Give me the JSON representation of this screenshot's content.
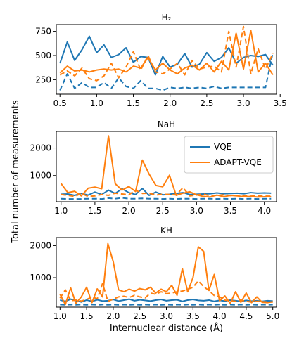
{
  "figure": {
    "xlabel": "Internuclear distance (Å)",
    "ylabel": "Total number of measurements"
  },
  "legend": {
    "location": "upper right of the NaH panel",
    "entries": [
      {
        "label": "VQE",
        "color": "#1f77b4"
      },
      {
        "label": "ADAPT-VQE",
        "color": "#ff7f0e"
      }
    ]
  },
  "chart_data": [
    {
      "type": "line",
      "title": "H₂",
      "xlim": [
        0.45,
        3.45
      ],
      "ylim": [
        100,
        820
      ],
      "xticks": [
        0.5,
        1.0,
        1.5,
        2.0,
        2.5,
        3.0,
        3.5
      ],
      "yticks": [
        250,
        500,
        750
      ],
      "x": [
        0.5,
        0.6,
        0.7,
        0.8,
        0.9,
        1.0,
        1.1,
        1.2,
        1.3,
        1.4,
        1.5,
        1.6,
        1.7,
        1.8,
        1.9,
        2.0,
        2.1,
        2.2,
        2.3,
        2.4,
        2.5,
        2.6,
        2.7,
        2.8,
        2.9,
        3.0,
        3.1,
        3.2,
        3.3,
        3.4
      ],
      "series": [
        {
          "name": "VQE",
          "style": "solid",
          "color": "#1f77b4",
          "values": [
            420,
            640,
            450,
            560,
            700,
            530,
            610,
            480,
            510,
            580,
            430,
            490,
            480,
            300,
            490,
            380,
            410,
            520,
            380,
            410,
            530,
            440,
            480,
            580,
            420,
            480,
            500,
            490,
            510,
            400
          ]
        },
        {
          "name": "VQE",
          "style": "dashed",
          "color": "#1f77b4",
          "values": [
            140,
            310,
            160,
            220,
            170,
            170,
            220,
            160,
            270,
            180,
            160,
            240,
            160,
            160,
            140,
            170,
            160,
            170,
            160,
            170,
            160,
            180,
            160,
            170,
            170,
            170,
            170,
            170,
            170,
            530
          ]
        },
        {
          "name": "ADAPT-VQE",
          "style": "solid",
          "color": "#ff7f0e",
          "values": [
            320,
            390,
            340,
            350,
            330,
            350,
            360,
            350,
            360,
            330,
            390,
            370,
            480,
            350,
            420,
            350,
            310,
            370,
            400,
            350,
            420,
            330,
            440,
            350,
            730,
            360,
            760,
            330,
            420,
            300
          ]
        },
        {
          "name": "ADAPT-VQE",
          "style": "dashed",
          "color": "#ff7f0e",
          "values": [
            300,
            340,
            290,
            370,
            260,
            240,
            290,
            420,
            270,
            380,
            540,
            350,
            500,
            330,
            310,
            360,
            420,
            300,
            450,
            360,
            380,
            390,
            330,
            750,
            380,
            800,
            310,
            570,
            360,
            520
          ]
        }
      ]
    },
    {
      "type": "line",
      "title": "NaH",
      "xlim": [
        0.93,
        4.18
      ],
      "ylim": [
        50,
        2600
      ],
      "xticks": [
        1.0,
        1.5,
        2.0,
        2.5,
        3.0,
        3.5,
        4.0
      ],
      "yticks": [
        1000,
        2000
      ],
      "x": [
        1.0,
        1.1,
        1.2,
        1.3,
        1.4,
        1.5,
        1.6,
        1.7,
        1.8,
        1.9,
        2.0,
        2.1,
        2.2,
        2.3,
        2.4,
        2.5,
        2.6,
        2.7,
        2.8,
        2.9,
        3.0,
        3.1,
        3.2,
        3.3,
        3.4,
        3.5,
        3.6,
        3.7,
        3.8,
        3.9,
        4.0,
        4.1
      ],
      "series": [
        {
          "name": "VQE",
          "style": "solid",
          "color": "#1f77b4",
          "values": [
            320,
            330,
            280,
            350,
            290,
            400,
            310,
            470,
            350,
            520,
            380,
            310,
            530,
            280,
            400,
            300,
            320,
            350,
            380,
            310,
            320,
            330,
            340,
            370,
            340,
            350,
            360,
            340,
            380,
            360,
            370,
            360
          ]
        },
        {
          "name": "VQE",
          "style": "dashed",
          "color": "#1f77b4",
          "values": [
            160,
            150,
            150,
            150,
            160,
            160,
            150,
            180,
            160,
            190,
            160,
            160,
            170,
            160,
            160,
            150,
            160,
            150,
            160,
            160,
            150,
            160,
            160,
            150,
            160,
            150,
            160,
            150,
            160,
            150,
            160,
            160
          ]
        },
        {
          "name": "ADAPT-VQE",
          "style": "solid",
          "color": "#ff7f0e",
          "values": [
            710,
            380,
            430,
            260,
            540,
            580,
            520,
            2440,
            700,
            470,
            600,
            420,
            1560,
            1050,
            640,
            590,
            1010,
            280,
            360,
            410,
            300,
            240,
            220,
            290,
            230,
            280,
            260,
            230,
            240,
            220,
            230,
            230
          ]
        },
        {
          "name": "ADAPT-VQE",
          "style": "dashed",
          "color": "#ff7f0e",
          "values": [
            310,
            280,
            240,
            350,
            240,
            260,
            310,
            280,
            360,
            330,
            300,
            470,
            350,
            360,
            290,
            320,
            310,
            300,
            560,
            260,
            290,
            330,
            260,
            280,
            300,
            270,
            280,
            270,
            250,
            260,
            250,
            250
          ]
        }
      ]
    },
    {
      "type": "line",
      "title": "KH",
      "xlim": [
        0.93,
        5.07
      ],
      "ylim": [
        80,
        2250
      ],
      "xticks": [
        1.0,
        1.5,
        2.0,
        2.5,
        3.0,
        3.5,
        4.0,
        4.5,
        5.0
      ],
      "yticks": [
        1000,
        2000
      ],
      "x": [
        1.0,
        1.1,
        1.2,
        1.3,
        1.4,
        1.5,
        1.6,
        1.7,
        1.8,
        1.9,
        2.0,
        2.1,
        2.2,
        2.3,
        2.4,
        2.5,
        2.6,
        2.7,
        2.8,
        2.9,
        3.0,
        3.1,
        3.2,
        3.3,
        3.4,
        3.5,
        3.6,
        3.7,
        3.8,
        3.9,
        4.0,
        4.1,
        4.2,
        4.3,
        4.4,
        4.5,
        4.6,
        4.7,
        4.8,
        4.9,
        5.0
      ],
      "series": [
        {
          "name": "VQE",
          "style": "solid",
          "color": "#1f77b4",
          "values": [
            300,
            260,
            330,
            280,
            240,
            300,
            260,
            310,
            270,
            280,
            320,
            270,
            300,
            330,
            280,
            310,
            290,
            270,
            300,
            320,
            280,
            300,
            310,
            260,
            300,
            320,
            290,
            280,
            300,
            260,
            290,
            270,
            300,
            280,
            260,
            290,
            270,
            280,
            260,
            280,
            270
          ]
        },
        {
          "name": "VQE",
          "style": "dashed",
          "color": "#1f77b4",
          "values": [
            160,
            150,
            160,
            150,
            160,
            150,
            160,
            150,
            160,
            150,
            160,
            150,
            160,
            150,
            160,
            150,
            160,
            150,
            160,
            150,
            160,
            150,
            160,
            150,
            160,
            150,
            160,
            150,
            160,
            150,
            160,
            150,
            160,
            150,
            160,
            150,
            160,
            150,
            160,
            150,
            160
          ]
        },
        {
          "name": "ADAPT-VQE",
          "style": "solid",
          "color": "#ff7f0e",
          "values": [
            480,
            160,
            680,
            200,
            400,
            700,
            220,
            650,
            400,
            2060,
            1500,
            620,
            560,
            640,
            580,
            660,
            620,
            700,
            520,
            640,
            560,
            760,
            450,
            1280,
            560,
            1000,
            1960,
            1820,
            600,
            1100,
            280,
            430,
            200,
            560,
            230,
            520,
            220,
            400,
            230,
            220,
            250
          ]
        },
        {
          "name": "ADAPT-VQE",
          "style": "dashed",
          "color": "#ff7f0e",
          "values": [
            360,
            620,
            280,
            300,
            270,
            320,
            400,
            340,
            820,
            260,
            330,
            400,
            420,
            380,
            450,
            400,
            370,
            520,
            480,
            560,
            500,
            520,
            560,
            580,
            640,
            700,
            900,
            720,
            600,
            440,
            400,
            300,
            280,
            260,
            300,
            260,
            240,
            260,
            250,
            240,
            240
          ]
        }
      ]
    }
  ]
}
